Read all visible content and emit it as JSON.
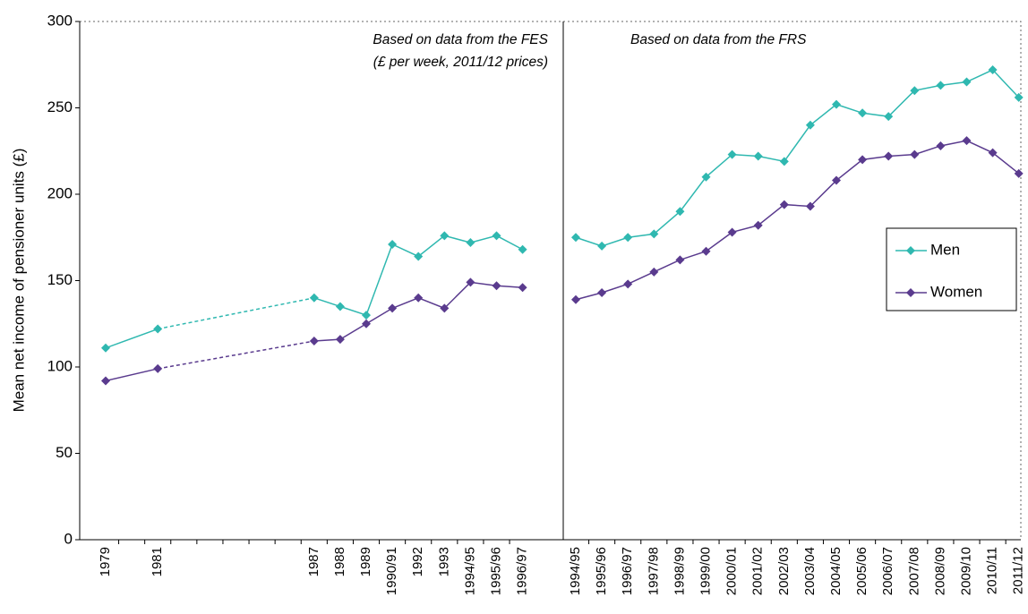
{
  "chart_data": [
    {
      "type": "line",
      "y_label": "Mean net income of pensioner units (£)",
      "notes": [
        "Based on data from the FES",
        "(£ per week, 2011/12 prices)"
      ],
      "categories": [
        "1979",
        null,
        "1981",
        null,
        null,
        null,
        null,
        null,
        "1987",
        "1988",
        "1989",
        "1990/91",
        "1992",
        "1993",
        "1994/95",
        "1995/96",
        "1996/97"
      ],
      "series": [
        {
          "color": "#2fb8b0",
          "values": [
            111,
            null,
            122,
            null,
            null,
            null,
            null,
            null,
            140,
            135,
            130,
            171,
            164,
            176,
            172,
            176,
            168
          ]
        },
        {
          "color": "#5a3b8e",
          "values": [
            92,
            null,
            99,
            null,
            null,
            null,
            null,
            null,
            115,
            116,
            125,
            134,
            140,
            134,
            149,
            147,
            146
          ]
        }
      ],
      "ylim": [
        0,
        300
      ],
      "yticks": [
        0,
        50,
        100,
        150,
        200,
        250,
        300
      ]
    },
    {
      "type": "line",
      "notes": [
        "Based on data from the FRS"
      ],
      "categories": [
        "1994/95",
        "1995/96",
        "1996/97",
        "1997/98",
        "1998/99",
        "1999/00",
        "2000/01",
        "2001/02",
        "2002/03",
        "2003/04",
        "2004/05",
        "2005/06",
        "2006/07",
        "2007/08",
        "2008/09",
        "2009/10",
        "2010/11",
        "2011/12"
      ],
      "series": [
        {
          "name": "Men",
          "color": "#2fb8b0",
          "values": [
            175,
            170,
            175,
            177,
            190,
            210,
            223,
            222,
            219,
            240,
            252,
            247,
            245,
            260,
            263,
            265,
            272,
            256
          ]
        },
        {
          "name": "Women",
          "color": "#5a3b8e",
          "values": [
            139,
            143,
            148,
            155,
            162,
            167,
            178,
            182,
            194,
            193,
            208,
            220,
            222,
            223,
            228,
            231,
            224,
            212
          ]
        }
      ],
      "ylim": [
        0,
        300
      ],
      "legend": "right"
    }
  ]
}
